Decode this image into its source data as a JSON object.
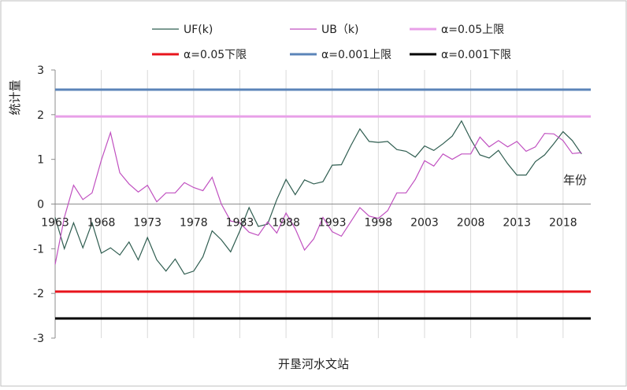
{
  "chart_data": {
    "type": "line",
    "xlabel": "开垦河水文站",
    "ylabel": "统计量",
    "annotation": "年份",
    "x_start": 1963,
    "x_end": 2021,
    "ylim": [
      -3,
      3
    ],
    "y_ticks": [
      -3,
      -2,
      -1,
      0,
      1,
      2,
      3
    ],
    "x_ticks": [
      1963,
      1968,
      1973,
      1978,
      1983,
      1988,
      1993,
      1998,
      2003,
      2008,
      2013,
      2018
    ],
    "grid": "vertical",
    "legend_position": "top",
    "series": [
      {
        "name": "UF(k)",
        "color": "#2f5d50",
        "values": [
          -0.3,
          -1.0,
          -0.42,
          -0.98,
          -0.42,
          -1.1,
          -0.98,
          -1.14,
          -0.85,
          -1.25,
          -0.75,
          -1.25,
          -1.5,
          -1.23,
          -1.57,
          -1.5,
          -1.18,
          -0.6,
          -0.8,
          -1.07,
          -0.6,
          -0.08,
          -0.5,
          -0.45,
          0.1,
          0.55,
          0.21,
          0.54,
          0.45,
          0.5,
          0.87,
          0.88,
          1.3,
          1.68,
          1.4,
          1.38,
          1.4,
          1.22,
          1.18,
          1.05,
          1.3,
          1.2,
          1.35,
          1.52,
          1.86,
          1.45,
          1.1,
          1.03,
          1.2,
          0.9,
          0.65,
          0.65,
          0.95,
          1.1,
          1.35,
          1.62,
          1.42,
          1.12
        ]
      },
      {
        "name": "UB（k)",
        "color": "#c050c0",
        "values": [
          -1.35,
          -0.3,
          0.42,
          0.1,
          0.25,
          0.98,
          1.6,
          0.7,
          0.45,
          0.27,
          0.42,
          0.05,
          0.25,
          0.25,
          0.48,
          0.37,
          0.3,
          0.6,
          0.0,
          -0.38,
          -0.42,
          -0.63,
          -0.7,
          -0.4,
          -0.65,
          -0.2,
          -0.55,
          -1.03,
          -0.78,
          -0.3,
          -0.62,
          -0.72,
          -0.4,
          -0.08,
          -0.27,
          -0.32,
          -0.15,
          0.25,
          0.25,
          0.55,
          0.97,
          0.85,
          1.12,
          1.0,
          1.12,
          1.12,
          1.5,
          1.28,
          1.42,
          1.28,
          1.4,
          1.18,
          1.28,
          1.58,
          1.57,
          1.42,
          1.13,
          1.15
        ]
      },
      {
        "name": "α=0.05上限",
        "color": "#e8a0e8",
        "constant": 1.96
      },
      {
        "name": "α=0.05下限",
        "color": "#e8141c",
        "constant": -1.96
      },
      {
        "name": "α=0.001上限",
        "color": "#5b84b8",
        "constant": 2.56
      },
      {
        "name": "α=0.001下限",
        "color": "#000000",
        "constant": -2.56
      }
    ]
  }
}
